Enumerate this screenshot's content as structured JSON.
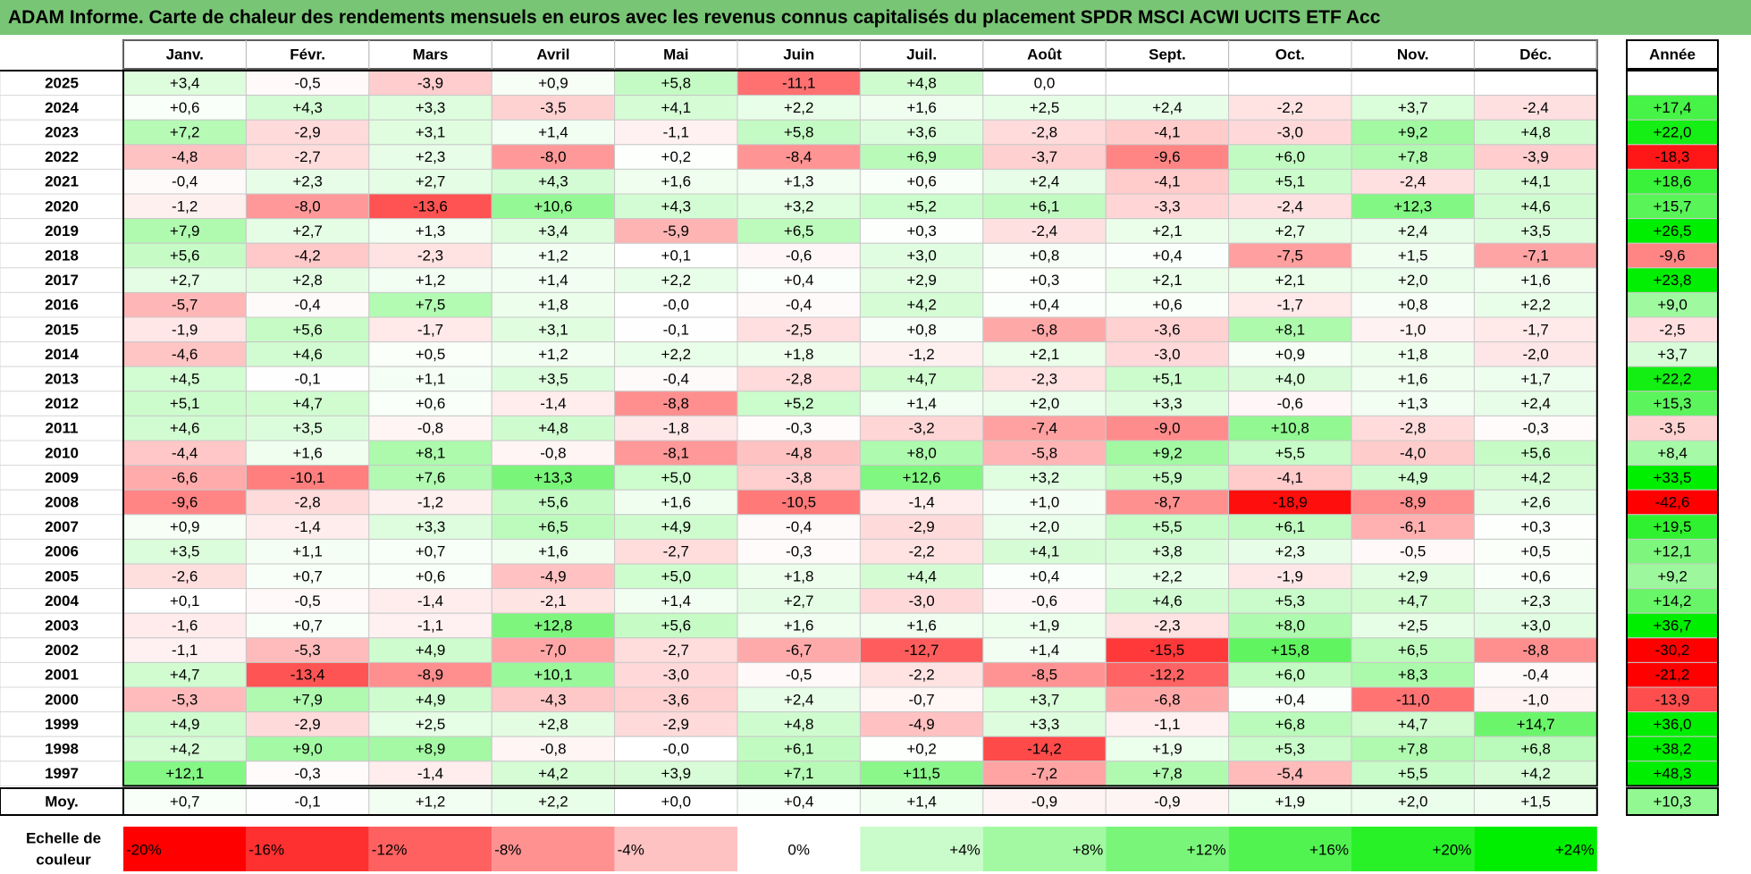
{
  "title": "ADAM Informe. Carte de chaleur des rendements mensuels en euros avec les revenus connus capitalisés du placement SPDR MSCI ACWI UCITS ETF Acc",
  "colors": {
    "title_bg": "#79c576",
    "negative": "#ff0000",
    "positive": "#00ee00",
    "neutral": "#ffffff"
  },
  "chart_data": {
    "type": "heatmap",
    "months": [
      "Janv.",
      "Févr.",
      "Mars",
      "Avril",
      "Mai",
      "Juin",
      "Juil.",
      "Août",
      "Sept.",
      "Oct.",
      "Nov.",
      "Déc."
    ],
    "year_header": "Année",
    "rows": [
      {
        "label": "2025",
        "values": [
          "+3,4",
          "-0,5",
          "-3,9",
          "+0,9",
          "+5,8",
          "-11,1",
          "+4,8",
          "0,0",
          "",
          "",
          "",
          ""
        ],
        "year": ""
      },
      {
        "label": "2024",
        "values": [
          "+0,6",
          "+4,3",
          "+3,3",
          "-3,5",
          "+4,1",
          "+2,2",
          "+1,6",
          "+2,5",
          "+2,4",
          "-2,2",
          "+3,7",
          "-2,4"
        ],
        "year": "+17,4"
      },
      {
        "label": "2023",
        "values": [
          "+7,2",
          "-2,9",
          "+3,1",
          "+1,4",
          "-1,1",
          "+5,8",
          "+3,6",
          "-2,8",
          "-4,1",
          "-3,0",
          "+9,2",
          "+4,8"
        ],
        "year": "+22,0"
      },
      {
        "label": "2022",
        "values": [
          "-4,8",
          "-2,7",
          "+2,3",
          "-8,0",
          "+0,2",
          "-8,4",
          "+6,9",
          "-3,7",
          "-9,6",
          "+6,0",
          "+7,8",
          "-3,9"
        ],
        "year": "-18,3"
      },
      {
        "label": "2021",
        "values": [
          "-0,4",
          "+2,3",
          "+2,7",
          "+4,3",
          "+1,6",
          "+1,3",
          "+0,6",
          "+2,4",
          "-4,1",
          "+5,1",
          "-2,4",
          "+4,1"
        ],
        "year": "+18,6"
      },
      {
        "label": "2020",
        "values": [
          "-1,2",
          "-8,0",
          "-13,6",
          "+10,6",
          "+4,3",
          "+3,2",
          "+5,2",
          "+6,1",
          "-3,3",
          "-2,4",
          "+12,3",
          "+4,6"
        ],
        "year": "+15,7"
      },
      {
        "label": "2019",
        "values": [
          "+7,9",
          "+2,7",
          "+1,3",
          "+3,4",
          "-5,9",
          "+6,5",
          "+0,3",
          "-2,4",
          "+2,1",
          "+2,7",
          "+2,4",
          "+3,5"
        ],
        "year": "+26,5"
      },
      {
        "label": "2018",
        "values": [
          "+5,6",
          "-4,2",
          "-2,3",
          "+1,2",
          "+0,1",
          "-0,6",
          "+3,0",
          "+0,8",
          "+0,4",
          "-7,5",
          "+1,5",
          "-7,1"
        ],
        "year": "-9,6"
      },
      {
        "label": "2017",
        "values": [
          "+2,7",
          "+2,8",
          "+1,2",
          "+1,4",
          "+2,2",
          "+0,4",
          "+2,9",
          "+0,3",
          "+2,1",
          "+2,1",
          "+2,0",
          "+1,6"
        ],
        "year": "+23,8"
      },
      {
        "label": "2016",
        "values": [
          "-5,7",
          "-0,4",
          "+7,5",
          "+1,8",
          "-0,0",
          "-0,4",
          "+4,2",
          "+0,4",
          "+0,6",
          "-1,7",
          "+0,8",
          "+2,2"
        ],
        "year": "+9,0"
      },
      {
        "label": "2015",
        "values": [
          "-1,9",
          "+5,6",
          "-1,7",
          "+3,1",
          "-0,1",
          "-2,5",
          "+0,8",
          "-6,8",
          "-3,6",
          "+8,1",
          "-1,0",
          "-1,7"
        ],
        "year": "-2,5"
      },
      {
        "label": "2014",
        "values": [
          "-4,6",
          "+4,6",
          "+0,5",
          "+1,2",
          "+2,2",
          "+1,8",
          "-1,2",
          "+2,1",
          "-3,0",
          "+0,9",
          "+1,8",
          "-2,0"
        ],
        "year": "+3,7"
      },
      {
        "label": "2013",
        "values": [
          "+4,5",
          "-0,1",
          "+1,1",
          "+3,5",
          "-0,4",
          "-2,8",
          "+4,7",
          "-2,3",
          "+5,1",
          "+4,0",
          "+1,6",
          "+1,7"
        ],
        "year": "+22,2"
      },
      {
        "label": "2012",
        "values": [
          "+5,1",
          "+4,7",
          "+0,6",
          "-1,4",
          "-8,8",
          "+5,2",
          "+1,4",
          "+2,0",
          "+3,3",
          "-0,6",
          "+1,3",
          "+2,4"
        ],
        "year": "+15,3"
      },
      {
        "label": "2011",
        "values": [
          "+4,6",
          "+3,5",
          "-0,8",
          "+4,8",
          "-1,8",
          "-0,3",
          "-3,2",
          "-7,4",
          "-9,0",
          "+10,8",
          "-2,8",
          "-0,3"
        ],
        "year": "-3,5"
      },
      {
        "label": "2010",
        "values": [
          "-4,4",
          "+1,6",
          "+8,1",
          "-0,8",
          "-8,1",
          "-4,8",
          "+8,0",
          "-5,8",
          "+9,2",
          "+5,5",
          "-4,0",
          "+5,6"
        ],
        "year": "+8,4"
      },
      {
        "label": "2009",
        "values": [
          "-6,6",
          "-10,1",
          "+7,6",
          "+13,3",
          "+5,0",
          "-3,8",
          "+12,6",
          "+3,2",
          "+5,9",
          "-4,1",
          "+4,9",
          "+4,2"
        ],
        "year": "+33,5"
      },
      {
        "label": "2008",
        "values": [
          "-9,6",
          "-2,8",
          "-1,2",
          "+5,6",
          "+1,6",
          "-10,5",
          "-1,4",
          "+1,0",
          "-8,7",
          "-18,9",
          "-8,9",
          "+2,6"
        ],
        "year": "-42,6"
      },
      {
        "label": "2007",
        "values": [
          "+0,9",
          "-1,4",
          "+3,3",
          "+6,5",
          "+4,9",
          "-0,4",
          "-2,9",
          "+2,0",
          "+5,5",
          "+6,1",
          "-6,1",
          "+0,3"
        ],
        "year": "+19,5"
      },
      {
        "label": "2006",
        "values": [
          "+3,5",
          "+1,1",
          "+0,7",
          "+1,6",
          "-2,7",
          "-0,3",
          "-2,2",
          "+4,1",
          "+3,8",
          "+2,3",
          "-0,5",
          "+0,5"
        ],
        "year": "+12,1"
      },
      {
        "label": "2005",
        "values": [
          "-2,6",
          "+0,7",
          "+0,6",
          "-4,9",
          "+5,0",
          "+1,8",
          "+4,4",
          "+0,4",
          "+2,2",
          "-1,9",
          "+2,9",
          "+0,6"
        ],
        "year": "+9,2"
      },
      {
        "label": "2004",
        "values": [
          "+0,1",
          "-0,5",
          "-1,4",
          "-2,1",
          "+1,4",
          "+2,7",
          "-3,0",
          "-0,6",
          "+4,6",
          "+5,3",
          "+4,7",
          "+2,3"
        ],
        "year": "+14,2"
      },
      {
        "label": "2003",
        "values": [
          "-1,6",
          "+0,7",
          "-1,1",
          "+12,8",
          "+5,6",
          "+1,6",
          "+1,6",
          "+1,9",
          "-2,3",
          "+8,0",
          "+2,5",
          "+3,0"
        ],
        "year": "+36,7"
      },
      {
        "label": "2002",
        "values": [
          "-1,1",
          "-5,3",
          "+4,9",
          "-7,0",
          "-2,7",
          "-6,7",
          "-12,7",
          "+1,4",
          "-15,5",
          "+15,8",
          "+6,5",
          "-8,8"
        ],
        "year": "-30,2"
      },
      {
        "label": "2001",
        "values": [
          "+4,7",
          "-13,4",
          "-8,9",
          "+10,1",
          "-3,0",
          "-0,5",
          "-2,2",
          "-8,5",
          "-12,2",
          "+6,0",
          "+8,3",
          "-0,4"
        ],
        "year": "-21,2"
      },
      {
        "label": "2000",
        "values": [
          "-5,3",
          "+7,9",
          "+4,9",
          "-4,3",
          "-3,6",
          "+2,4",
          "-0,7",
          "+3,7",
          "-6,8",
          "+0,4",
          "-11,0",
          "-1,0"
        ],
        "year": "-13,9"
      },
      {
        "label": "1999",
        "values": [
          "+4,9",
          "-2,9",
          "+2,5",
          "+2,8",
          "-2,9",
          "+4,8",
          "-4,9",
          "+3,3",
          "-1,1",
          "+6,8",
          "+4,7",
          "+14,7"
        ],
        "year": "+36,0"
      },
      {
        "label": "1998",
        "values": [
          "+4,2",
          "+9,0",
          "+8,9",
          "-0,8",
          "-0,0",
          "+6,1",
          "+0,2",
          "-14,2",
          "+1,9",
          "+5,3",
          "+7,8",
          "+6,8"
        ],
        "year": "+38,2"
      },
      {
        "label": "1997",
        "values": [
          "+12,1",
          "-0,3",
          "-1,4",
          "+4,2",
          "+3,9",
          "+7,1",
          "+11,5",
          "-7,2",
          "+7,8",
          "-5,4",
          "+5,5",
          "+4,2"
        ],
        "year": "+48,3"
      }
    ],
    "average": {
      "label": "Moy.",
      "values": [
        "+0,7",
        "-0,1",
        "+1,2",
        "+2,2",
        "+0,0",
        "+0,4",
        "+1,4",
        "-0,9",
        "-0,9",
        "+1,9",
        "+2,0",
        "+1,5"
      ],
      "year": "+10,3"
    },
    "scale": {
      "label": "Echelle de couleur",
      "steps": [
        {
          "value": -20,
          "label": "-20%"
        },
        {
          "value": -16,
          "label": "-16%"
        },
        {
          "value": -12,
          "label": "-12%"
        },
        {
          "value": -8,
          "label": "-8%"
        },
        {
          "value": -4,
          "label": "-4%"
        },
        {
          "value": 0,
          "label": "0%"
        },
        {
          "value": 4,
          "label": "+4%"
        },
        {
          "value": 8,
          "label": "+8%"
        },
        {
          "value": 12,
          "label": "+12%"
        },
        {
          "value": 16,
          "label": "+16%"
        },
        {
          "value": 20,
          "label": "+20%"
        },
        {
          "value": 24,
          "label": "+24%"
        }
      ]
    }
  }
}
